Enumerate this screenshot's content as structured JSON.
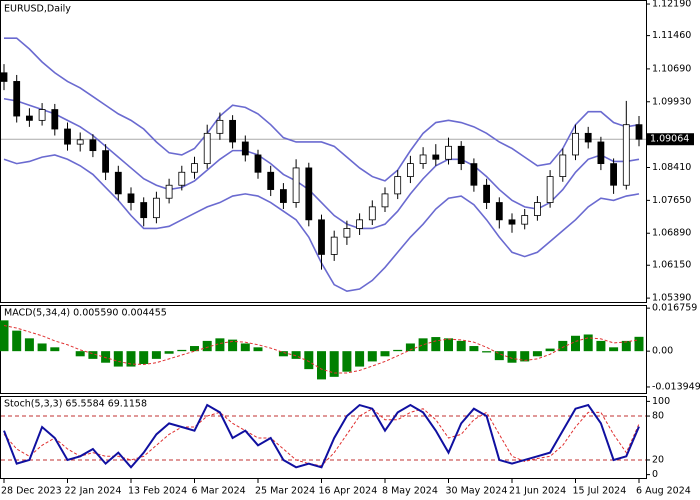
{
  "chart_data": [
    {
      "type": "candlestick",
      "title": "EURUSD,Daily",
      "categories": [
        "28 Dec 2023",
        null,
        null,
        null,
        null,
        "22 Jan 2024",
        null,
        null,
        null,
        null,
        "13 Feb 2024",
        null,
        null,
        null,
        null,
        "6 Mar 2024",
        null,
        null,
        null,
        null,
        "25 Mar 2024",
        null,
        null,
        null,
        null,
        "16 Apr 2024",
        null,
        null,
        null,
        null,
        "8 May 2024",
        null,
        null,
        null,
        null,
        "30 May 2024",
        null,
        null,
        null,
        null,
        "21 Jun 2024",
        null,
        null,
        null,
        null,
        "15 Jul 2024",
        null,
        null,
        null,
        null,
        "6 Aug 2024"
      ],
      "open": [
        1.106,
        1.104,
        1.096,
        1.095,
        1.0975,
        1.093,
        1.0895,
        1.0905,
        1.088,
        1.083,
        1.078,
        1.076,
        1.0725,
        1.077,
        1.08,
        1.083,
        1.085,
        1.092,
        1.095,
        1.09,
        1.087,
        1.083,
        1.079,
        1.076,
        1.084,
        1.072,
        1.064,
        1.068,
        1.07,
        1.072,
        1.075,
        1.078,
        1.082,
        1.085,
        1.087,
        1.086,
        1.089,
        1.085,
        1.08,
        1.076,
        1.072,
        1.071,
        1.073,
        1.076,
        1.082,
        1.087,
        1.092,
        1.09,
        1.085,
        1.08,
        1.094
      ],
      "high": [
        1.108,
        1.1055,
        1.0978,
        1.099,
        1.0988,
        1.0945,
        1.0922,
        1.0918,
        1.0895,
        1.0845,
        1.0795,
        1.0772,
        1.0785,
        1.0815,
        1.0845,
        1.0866,
        1.094,
        1.0968,
        1.0962,
        1.0915,
        1.0882,
        1.0845,
        1.0805,
        1.086,
        1.0852,
        1.0732,
        1.0695,
        1.0718,
        1.0735,
        1.0765,
        1.0795,
        1.0835,
        1.0868,
        1.0888,
        1.0895,
        1.091,
        1.0902,
        1.0862,
        1.0815,
        1.0772,
        1.0735,
        1.0745,
        1.0775,
        1.0835,
        1.0885,
        1.094,
        1.0935,
        1.0912,
        1.0862,
        1.0995,
        1.096
      ],
      "low": [
        1.102,
        1.0945,
        1.0935,
        1.0938,
        1.0915,
        1.088,
        1.0878,
        1.0865,
        1.0812,
        1.0765,
        1.0742,
        1.0705,
        1.0712,
        1.0758,
        1.0788,
        1.0815,
        1.0838,
        1.0905,
        1.0885,
        1.0855,
        1.0815,
        1.0775,
        1.0745,
        1.0748,
        1.0705,
        1.0605,
        1.0625,
        1.0662,
        1.0685,
        1.0708,
        1.0738,
        1.0768,
        1.0805,
        1.0838,
        1.0845,
        1.0848,
        1.0835,
        1.0785,
        1.0745,
        1.07,
        1.069,
        1.0698,
        1.0718,
        1.0748,
        1.0808,
        1.0858,
        1.0885,
        1.0835,
        1.078,
        1.079,
        1.089
      ],
      "close": [
        1.104,
        1.096,
        1.095,
        1.0975,
        1.093,
        1.0895,
        1.0905,
        1.088,
        1.083,
        1.078,
        1.076,
        1.0725,
        1.077,
        1.08,
        1.083,
        1.085,
        1.092,
        1.095,
        1.09,
        1.087,
        1.083,
        1.079,
        1.076,
        1.084,
        1.072,
        1.064,
        1.068,
        1.07,
        1.072,
        1.075,
        1.078,
        1.082,
        1.085,
        1.087,
        1.086,
        1.089,
        1.085,
        1.08,
        1.076,
        1.072,
        1.071,
        1.073,
        1.076,
        1.082,
        1.087,
        1.092,
        1.09,
        1.085,
        1.08,
        1.094,
        1.09064
      ],
      "overlays": [
        {
          "color": "#6a6ad0",
          "values": [
            1.114,
            1.114,
            1.1115,
            1.1085,
            1.106,
            1.104,
            1.1025,
            1.1005,
            1.0985,
            1.0965,
            1.095,
            1.093,
            1.09,
            1.0875,
            1.087,
            1.0885,
            1.092,
            1.096,
            1.0985,
            1.098,
            1.0965,
            1.094,
            1.091,
            1.09,
            1.09,
            1.09,
            1.089,
            1.0865,
            1.084,
            1.082,
            1.081,
            1.0835,
            1.088,
            1.092,
            1.0945,
            1.095,
            1.0945,
            1.0935,
            1.092,
            1.09,
            1.0885,
            1.0865,
            1.0845,
            1.085,
            1.0885,
            1.094,
            1.097,
            1.097,
            1.0945,
            1.0935,
            1.094
          ]
        },
        {
          "color": "#6a6ad0",
          "values": [
            1.1,
            1.0995,
            1.0985,
            1.0975,
            1.0965,
            1.095,
            1.0935,
            1.0915,
            1.089,
            1.0865,
            1.084,
            1.0815,
            1.08,
            1.079,
            1.0795,
            1.081,
            1.0835,
            1.086,
            1.088,
            1.088,
            1.087,
            1.085,
            1.0825,
            1.081,
            1.079,
            1.076,
            1.073,
            1.071,
            1.07,
            1.07,
            1.071,
            1.074,
            1.078,
            1.0815,
            1.0845,
            1.086,
            1.086,
            1.0845,
            1.082,
            1.079,
            1.0765,
            1.075,
            1.0745,
            1.076,
            1.079,
            1.083,
            1.086,
            1.087,
            1.0855,
            1.0855,
            1.086
          ]
        },
        {
          "color": "#6a6ad0",
          "values": [
            1.086,
            1.085,
            1.0855,
            1.0865,
            1.087,
            1.086,
            1.0845,
            1.0825,
            1.0795,
            1.0765,
            1.073,
            1.07,
            1.07,
            1.0705,
            1.072,
            1.0735,
            1.075,
            1.076,
            1.0775,
            1.078,
            1.0775,
            1.076,
            1.074,
            1.072,
            1.068,
            1.062,
            1.057,
            1.0555,
            1.056,
            1.058,
            1.061,
            1.0645,
            1.068,
            1.071,
            1.0745,
            1.077,
            1.0775,
            1.0755,
            1.072,
            1.068,
            1.0645,
            1.0635,
            1.0645,
            1.067,
            1.0695,
            1.072,
            1.075,
            1.077,
            1.0765,
            1.0775,
            1.078
          ]
        }
      ],
      "current_price": 1.09064,
      "ylim": [
        1.053,
        1.1226
      ],
      "yticks": [
        {
          "value": 1.1219,
          "label": "1.12190"
        },
        {
          "value": 1.1146,
          "label": "1.11460"
        },
        {
          "value": 1.1069,
          "label": "1.10690"
        },
        {
          "value": 1.0993,
          "label": "1.09930"
        },
        {
          "value": 1.0841,
          "label": "1.08410"
        },
        {
          "value": 1.0765,
          "label": "1.07650"
        },
        {
          "value": 1.0689,
          "label": "1.06890"
        },
        {
          "value": 1.0615,
          "label": "1.06150"
        },
        {
          "value": 1.0539,
          "label": "1.05390"
        }
      ]
    },
    {
      "type": "macd",
      "title": "MACD(5,34,4) 0.005590 0.004455",
      "histogram": {
        "color": "#008000",
        "values": [
          0.012,
          0.008,
          0.005,
          0.003,
          0.0015,
          0.0,
          -0.002,
          -0.003,
          -0.0045,
          -0.006,
          -0.006,
          -0.005,
          -0.003,
          -0.001,
          0.0005,
          0.002,
          0.004,
          0.005,
          0.0045,
          0.003,
          0.0015,
          0.0,
          -0.002,
          -0.003,
          -0.007,
          -0.011,
          -0.01,
          -0.008,
          -0.006,
          -0.004,
          -0.002,
          0.0005,
          0.003,
          0.005,
          0.0055,
          0.005,
          0.004,
          0.002,
          -0.0005,
          -0.0035,
          -0.0045,
          -0.004,
          -0.002,
          0.001,
          0.004,
          0.006,
          0.0065,
          0.004,
          0.0015,
          0.004,
          0.00559
        ]
      },
      "signal": {
        "color": "#e03030",
        "values": [
          0.01,
          0.009,
          0.0075,
          0.006,
          0.004,
          0.0025,
          0.0005,
          -0.001,
          -0.0025,
          -0.004,
          -0.005,
          -0.0052,
          -0.0045,
          -0.003,
          -0.0015,
          0.0,
          0.0015,
          0.003,
          0.0038,
          0.0035,
          0.0025,
          0.0012,
          -0.0005,
          -0.0018,
          -0.004,
          -0.007,
          -0.0085,
          -0.0085,
          -0.0075,
          -0.0058,
          -0.004,
          -0.0018,
          0.0005,
          0.0025,
          0.004,
          0.0047,
          0.0044,
          0.0035,
          0.0015,
          -0.001,
          -0.0028,
          -0.0036,
          -0.003,
          -0.0012,
          0.0015,
          0.0038,
          0.0052,
          0.0048,
          0.0032,
          0.0036,
          0.004455
        ]
      },
      "ylim": [
        -0.0163,
        0.0176
      ],
      "yticks": [
        0.016759,
        {
          "value": 0,
          "label": "0.00"
        },
        -0.013949
      ]
    },
    {
      "type": "stochastic",
      "title": "Stoch(5,3,3) 65.5584 69.1158",
      "main": {
        "color": "#1010a0",
        "values": [
          60,
          15,
          20,
          65,
          50,
          20,
          25,
          35,
          15,
          30,
          10,
          30,
          55,
          70,
          65,
          60,
          95,
          85,
          50,
          60,
          40,
          50,
          20,
          10,
          15,
          10,
          50,
          80,
          95,
          90,
          60,
          85,
          95,
          85,
          60,
          30,
          70,
          90,
          80,
          20,
          15,
          20,
          25,
          30,
          60,
          90,
          95,
          70,
          20,
          25,
          65.5584
        ]
      },
      "signal": {
        "color": "#e03030",
        "values": [
          55,
          35,
          25,
          40,
          50,
          35,
          25,
          30,
          25,
          25,
          20,
          25,
          40,
          55,
          65,
          65,
          80,
          85,
          70,
          60,
          50,
          50,
          35,
          20,
          15,
          12,
          30,
          55,
          80,
          90,
          75,
          75,
          85,
          90,
          75,
          50,
          55,
          75,
          85,
          55,
          25,
          18,
          22,
          25,
          40,
          65,
          85,
          85,
          55,
          30,
          69.1158
        ]
      },
      "levels": [
        80,
        20
      ],
      "level_color": "#c03030",
      "ylim": [
        -6,
        106
      ],
      "yticks": [
        100,
        80,
        20,
        0
      ]
    }
  ]
}
